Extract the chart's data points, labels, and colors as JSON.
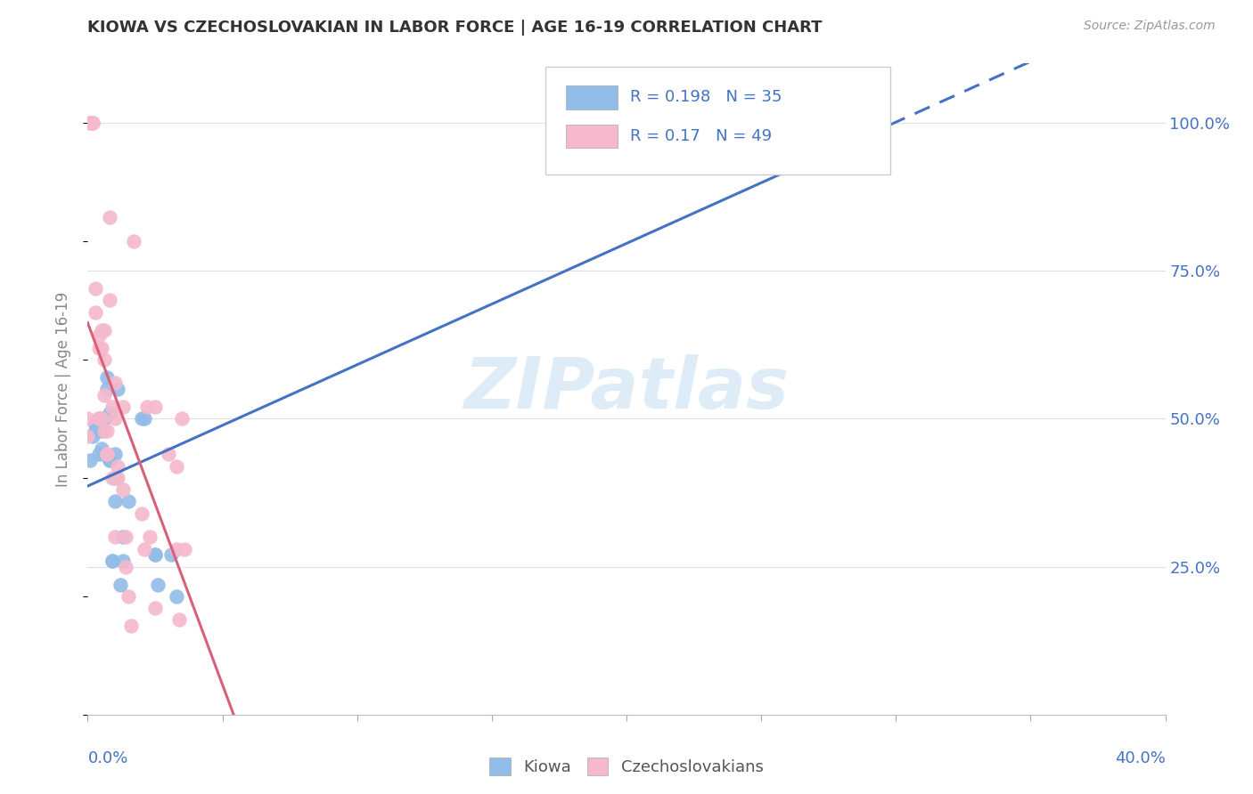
{
  "title": "KIOWA VS CZECHOSLOVAKIAN IN LABOR FORCE | AGE 16-19 CORRELATION CHART",
  "source": "Source: ZipAtlas.com",
  "ylabel": "In Labor Force | Age 16-19",
  "kiowa_R": 0.198,
  "kiowa_N": 35,
  "czech_R": 0.17,
  "czech_N": 49,
  "kiowa_color": "#92bce8",
  "czech_color": "#f5b8cc",
  "kiowa_line_color": "#4472c4",
  "czech_line_color": "#d9607a",
  "watermark_color": "#d0e4f5",
  "title_color": "#333333",
  "source_color": "#999999",
  "axis_label_color": "#4472c4",
  "ylabel_color": "#888888",
  "grid_color": "#e0e0e0",
  "kiowa_x": [
    0.001,
    0.002,
    0.003,
    0.003,
    0.004,
    0.004,
    0.005,
    0.005,
    0.005,
    0.006,
    0.006,
    0.006,
    0.007,
    0.007,
    0.008,
    0.008,
    0.008,
    0.009,
    0.009,
    0.01,
    0.01,
    0.01,
    0.011,
    0.012,
    0.013,
    0.013,
    0.015,
    0.02,
    0.021,
    0.025,
    0.025,
    0.026,
    0.031,
    0.033,
    0.25
  ],
  "kiowa_y": [
    0.43,
    0.47,
    0.48,
    0.49,
    0.44,
    0.5,
    0.5,
    0.48,
    0.45,
    0.5,
    0.5,
    0.44,
    0.57,
    0.55,
    0.51,
    0.43,
    0.43,
    0.26,
    0.26,
    0.44,
    0.36,
    0.4,
    0.55,
    0.22,
    0.3,
    0.26,
    0.36,
    0.5,
    0.5,
    0.27,
    0.27,
    0.22,
    0.27,
    0.2,
    1.0
  ],
  "czech_x": [
    0.0,
    0.0,
    0.001,
    0.001,
    0.002,
    0.002,
    0.003,
    0.003,
    0.004,
    0.004,
    0.004,
    0.005,
    0.005,
    0.005,
    0.006,
    0.006,
    0.006,
    0.006,
    0.007,
    0.007,
    0.007,
    0.008,
    0.008,
    0.009,
    0.009,
    0.01,
    0.01,
    0.01,
    0.011,
    0.011,
    0.013,
    0.013,
    0.014,
    0.014,
    0.015,
    0.016,
    0.017,
    0.02,
    0.021,
    0.022,
    0.023,
    0.025,
    0.025,
    0.03,
    0.033,
    0.033,
    0.034,
    0.035,
    0.036
  ],
  "czech_y": [
    0.5,
    0.47,
    1.0,
    1.0,
    1.0,
    1.0,
    0.68,
    0.72,
    0.64,
    0.62,
    0.5,
    0.65,
    0.62,
    0.5,
    0.65,
    0.6,
    0.54,
    0.48,
    0.48,
    0.44,
    0.44,
    0.84,
    0.7,
    0.52,
    0.4,
    0.56,
    0.5,
    0.3,
    0.42,
    0.4,
    0.52,
    0.38,
    0.3,
    0.25,
    0.2,
    0.15,
    0.8,
    0.34,
    0.28,
    0.52,
    0.3,
    0.18,
    0.52,
    0.44,
    0.42,
    0.28,
    0.16,
    0.5,
    0.28
  ],
  "xlim": [
    0.0,
    0.4
  ],
  "ylim": [
    0.0,
    1.1
  ],
  "kiowa_regression_dash_start": 0.27
}
